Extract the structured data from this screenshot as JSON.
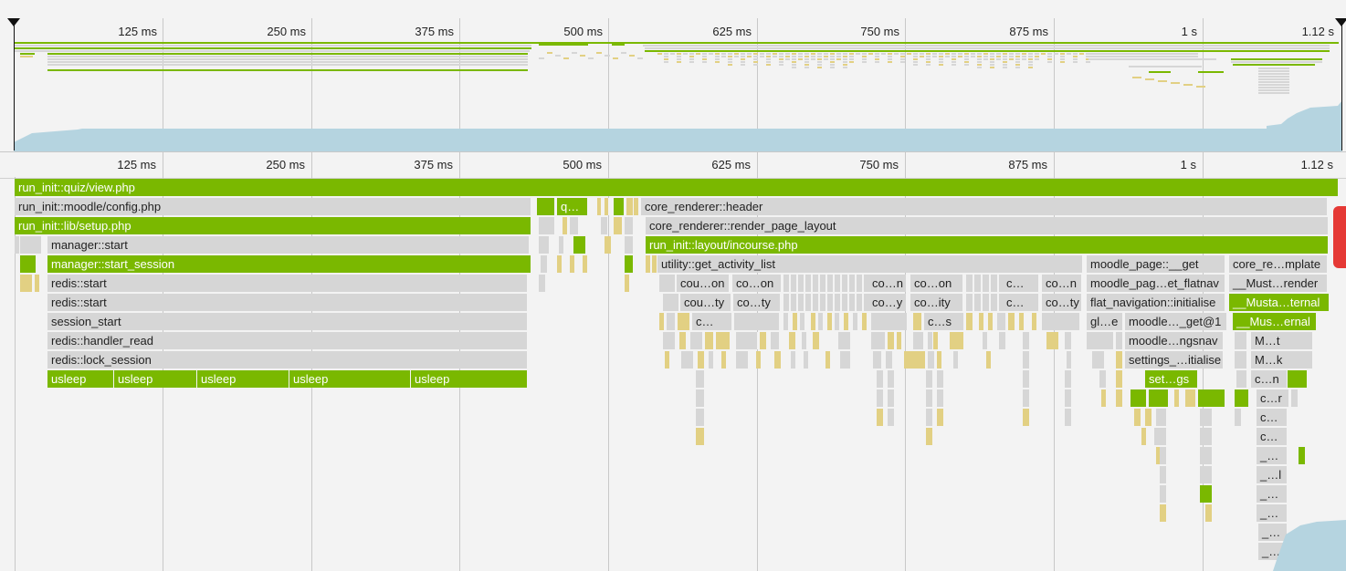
{
  "colors": {
    "green": "#7ab800",
    "slice": "#d6d6d6",
    "yellow": "#e2d083",
    "cpu": "#b5d4e0",
    "background": "#f3f3f3",
    "grid": "#c8c8c8"
  },
  "ticks": [
    "125 ms",
    "250 ms",
    "375 ms",
    "500 ms",
    "625 ms",
    "750 ms",
    "875 ms",
    "1 s",
    "1.12 s"
  ],
  "overview": {
    "selection_handle_left": "selection-handle-left",
    "selection_handle_right": "selection-handle-right"
  },
  "flame": {
    "rows": [
      [
        "run_init::quiz/view.php"
      ],
      [
        "run_init::moodle/config.php",
        "q…",
        "core_renderer::header"
      ],
      [
        "run_init::lib/setup.php",
        "core_renderer::render_page_layout"
      ],
      [
        "manager::start",
        "run_init::layout/incourse.php"
      ],
      [
        "manager::start_session",
        "utility::get_activity_list",
        "moodle_page::__get",
        "core_re…mplate"
      ],
      [
        "redis::start",
        "cou…on",
        "co…on",
        "co…n",
        "co…on",
        "c…",
        "co…n",
        "moodle_pag…et_flatnav",
        "__Must…render"
      ],
      [
        "redis::start",
        "cou…ty",
        "co…ty",
        "co…y",
        "co…ity",
        "c…",
        "co…ty",
        "flat_navigation::initialise",
        "__Musta…ternal"
      ],
      [
        "session_start",
        "c…",
        "c…s",
        "gl…e",
        "moodle…_get@1",
        "__Mus…ernal"
      ],
      [
        "redis::handler_read",
        "moodle…ngsnav",
        "M…t"
      ],
      [
        "redis::lock_session",
        "settings_…itialise",
        "M…k"
      ],
      [
        "usleep",
        "usleep",
        "usleep",
        "usleep",
        "usleep",
        "set…gs",
        "c…n"
      ],
      [
        "c…r"
      ],
      [
        "c…"
      ],
      [
        "c…"
      ],
      [
        "_…"
      ],
      [
        "_…l"
      ],
      [
        "_…"
      ],
      [
        "_…"
      ],
      [
        "_…"
      ],
      [
        "_…"
      ]
    ]
  }
}
